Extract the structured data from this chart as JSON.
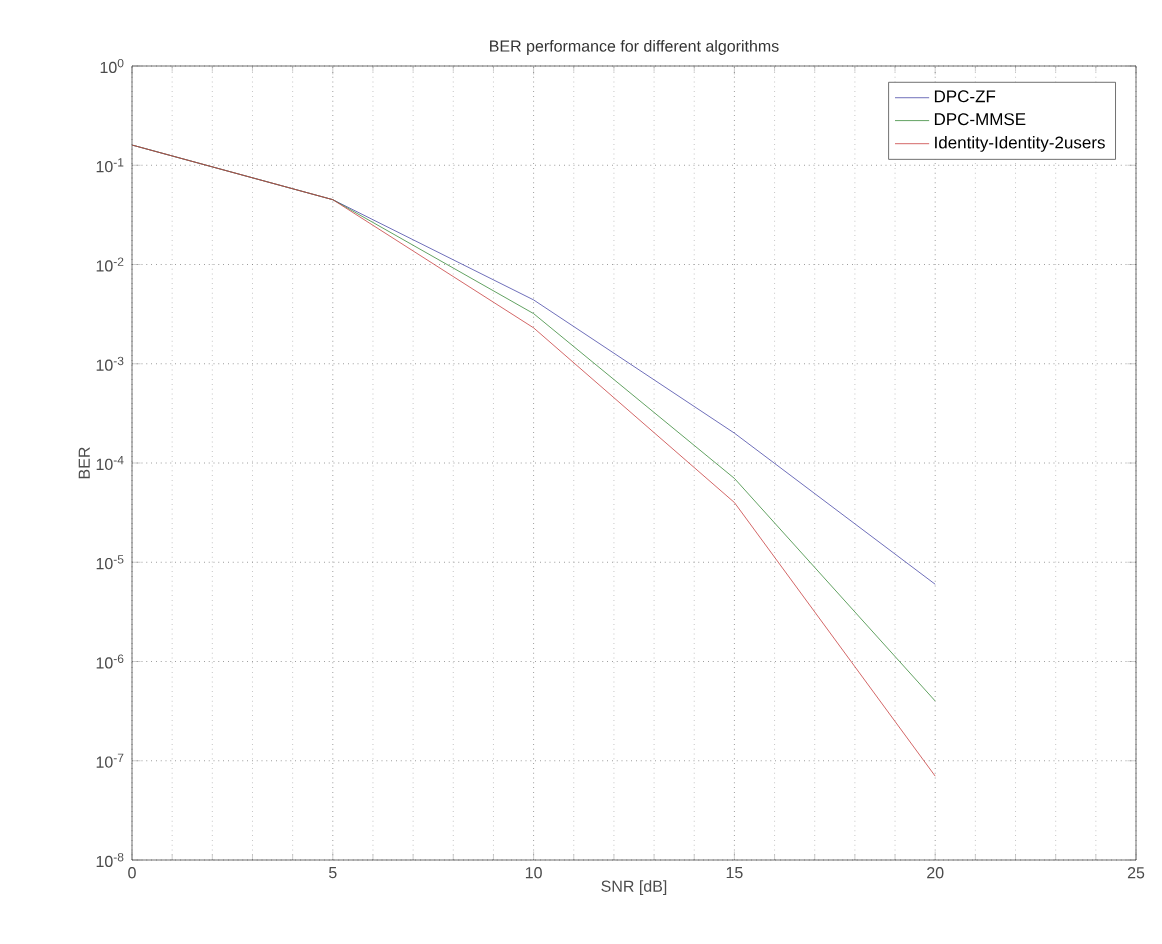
{
  "chart_data": {
    "type": "line",
    "title": "BER performance for different algorithms",
    "xlabel": "SNR [dB]",
    "ylabel": "BER",
    "x": [
      0,
      5,
      10,
      15,
      20
    ],
    "series": [
      {
        "name": "DPC-ZF",
        "color": "#4a4aa8",
        "values": [
          0.16,
          0.045,
          0.0044,
          0.0002,
          6e-06
        ]
      },
      {
        "name": "DPC-MMSE",
        "color": "#3a8a3a",
        "values": [
          0.16,
          0.045,
          0.0032,
          7e-05,
          4e-07
        ]
      },
      {
        "name": "Identity-Identity-2users",
        "color": "#c84040",
        "values": [
          0.16,
          0.045,
          0.0023,
          4e-05,
          7e-08
        ]
      }
    ],
    "xlim": [
      0,
      25
    ],
    "xticks": [
      0,
      5,
      10,
      15,
      20,
      25
    ],
    "ylim": [
      1e-08,
      1
    ],
    "log": "y",
    "yticks": [
      {
        "value": 1e-08,
        "label": "10$^{-8}$"
      },
      {
        "value": 1e-07,
        "label": "10$^{-7}$"
      },
      {
        "value": 1e-06,
        "label": "10$^{-6}$"
      },
      {
        "value": 1e-05,
        "label": "10$^{-5}$"
      },
      {
        "value": 0.0001,
        "label": "10$^{-4}$"
      },
      {
        "value": 0.001,
        "label": "10$^{-3}$"
      },
      {
        "value": 0.01,
        "label": "10$^{-2}$"
      },
      {
        "value": 0.1,
        "label": "10$^{-1}$"
      },
      {
        "value": 1,
        "label": "10$^{0}$"
      }
    ],
    "grid": true,
    "legend": "top right",
    "line_style": "solid"
  }
}
